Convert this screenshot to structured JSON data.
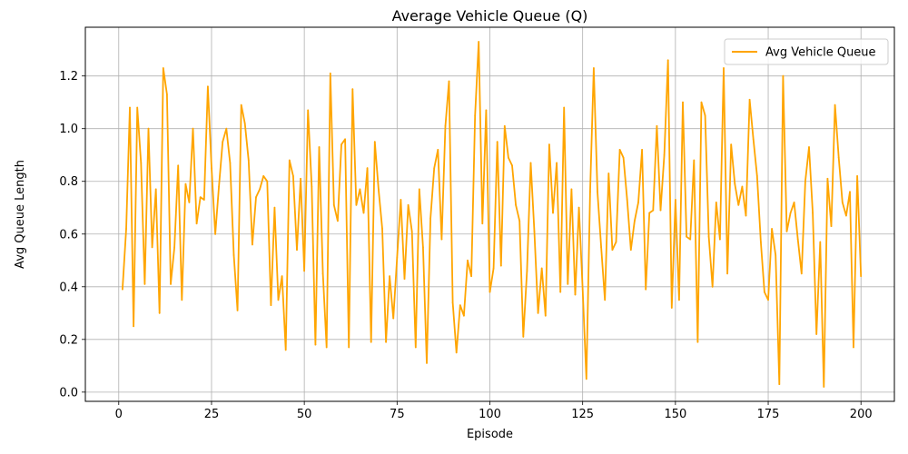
{
  "chart_data": {
    "type": "line",
    "title": "Average Vehicle Queue (Q)",
    "xlabel": "Episode",
    "ylabel": "Avg Queue Length",
    "xlim": [
      -9,
      209
    ],
    "ylim": [
      -0.035,
      1.385
    ],
    "xticks": [
      0,
      25,
      50,
      75,
      100,
      125,
      150,
      175,
      200
    ],
    "xtick_labels": [
      "0",
      "25",
      "50",
      "75",
      "100",
      "125",
      "150",
      "175",
      "200"
    ],
    "yticks": [
      0.0,
      0.2,
      0.4,
      0.6,
      0.8,
      1.0,
      1.2
    ],
    "ytick_labels": [
      "0.0",
      "0.2",
      "0.4",
      "0.6",
      "0.8",
      "1.0",
      "1.2"
    ],
    "grid": true,
    "legend_position": "top-right",
    "series": [
      {
        "name": "Avg Vehicle Queue",
        "color": "#FFA500",
        "x": [
          1,
          2,
          3,
          4,
          5,
          6,
          7,
          8,
          9,
          10,
          11,
          12,
          13,
          14,
          15,
          16,
          17,
          18,
          19,
          20,
          21,
          22,
          23,
          24,
          25,
          26,
          27,
          28,
          29,
          30,
          31,
          32,
          33,
          34,
          35,
          36,
          37,
          38,
          39,
          40,
          41,
          42,
          43,
          44,
          45,
          46,
          47,
          48,
          49,
          50,
          51,
          52,
          53,
          54,
          55,
          56,
          57,
          58,
          59,
          60,
          61,
          62,
          63,
          64,
          65,
          66,
          67,
          68,
          69,
          70,
          71,
          72,
          73,
          74,
          75,
          76,
          77,
          78,
          79,
          80,
          81,
          82,
          83,
          84,
          85,
          86,
          87,
          88,
          89,
          90,
          91,
          92,
          93,
          94,
          95,
          96,
          97,
          98,
          99,
          100,
          101,
          102,
          103,
          104,
          105,
          106,
          107,
          108,
          109,
          110,
          111,
          112,
          113,
          114,
          115,
          116,
          117,
          118,
          119,
          120,
          121,
          122,
          123,
          124,
          125,
          126,
          127,
          128,
          129,
          130,
          131,
          132,
          133,
          134,
          135,
          136,
          137,
          138,
          139,
          140,
          141,
          142,
          143,
          144,
          145,
          146,
          147,
          148,
          149,
          150,
          151,
          152,
          153,
          154,
          155,
          156,
          157,
          158,
          159,
          160,
          161,
          162,
          163,
          164,
          165,
          166,
          167,
          168,
          169,
          170,
          171,
          172,
          173,
          174,
          175,
          176,
          177,
          178,
          179,
          180,
          181,
          182,
          183,
          184,
          185,
          186,
          187,
          188,
          189,
          190,
          191,
          192,
          193,
          194,
          195,
          196,
          197,
          198,
          199,
          200
        ],
        "values": [
          0.39,
          0.62,
          1.08,
          0.25,
          1.08,
          0.87,
          0.41,
          1.0,
          0.55,
          0.77,
          0.3,
          1.23,
          1.13,
          0.41,
          0.55,
          0.86,
          0.35,
          0.79,
          0.72,
          1.0,
          0.64,
          0.74,
          0.73,
          1.16,
          0.85,
          0.6,
          0.78,
          0.95,
          1.0,
          0.87,
          0.52,
          0.31,
          1.09,
          1.02,
          0.88,
          0.56,
          0.74,
          0.77,
          0.82,
          0.8,
          0.33,
          0.7,
          0.35,
          0.44,
          0.16,
          0.88,
          0.82,
          0.54,
          0.81,
          0.46,
          1.07,
          0.78,
          0.18,
          0.93,
          0.45,
          0.17,
          1.21,
          0.71,
          0.65,
          0.94,
          0.96,
          0.17,
          1.15,
          0.71,
          0.77,
          0.68,
          0.85,
          0.19,
          0.95,
          0.77,
          0.62,
          0.19,
          0.44,
          0.28,
          0.51,
          0.73,
          0.43,
          0.71,
          0.61,
          0.17,
          0.77,
          0.55,
          0.11,
          0.66,
          0.85,
          0.92,
          0.58,
          1.01,
          1.18,
          0.34,
          0.15,
          0.33,
          0.29,
          0.5,
          0.44,
          1.05,
          1.33,
          0.64,
          1.07,
          0.38,
          0.47,
          0.95,
          0.48,
          1.01,
          0.89,
          0.86,
          0.71,
          0.65,
          0.21,
          0.46,
          0.87,
          0.61,
          0.3,
          0.47,
          0.29,
          0.94,
          0.68,
          0.87,
          0.38,
          1.08,
          0.41,
          0.77,
          0.37,
          0.7,
          0.39,
          0.05,
          0.76,
          1.23,
          0.76,
          0.55,
          0.35,
          0.83,
          0.54,
          0.57,
          0.92,
          0.89,
          0.73,
          0.54,
          0.65,
          0.72,
          0.92,
          0.39,
          0.68,
          0.69,
          1.01,
          0.69,
          0.9,
          1.26,
          0.32,
          0.73,
          0.35,
          1.1,
          0.59,
          0.58,
          0.88,
          0.19,
          1.1,
          1.05,
          0.59,
          0.4,
          0.72,
          0.58,
          1.23,
          0.45,
          0.94,
          0.79,
          0.71,
          0.78,
          0.67,
          1.11,
          0.96,
          0.82,
          0.57,
          0.38,
          0.35,
          0.62,
          0.52,
          0.03,
          1.2,
          0.61,
          0.68,
          0.72,
          0.58,
          0.45,
          0.8,
          0.93,
          0.68,
          0.22,
          0.57,
          0.02,
          0.81,
          0.63,
          1.09,
          0.89,
          0.72,
          0.67,
          0.76,
          0.17,
          0.82,
          0.44
        ]
      }
    ]
  }
}
